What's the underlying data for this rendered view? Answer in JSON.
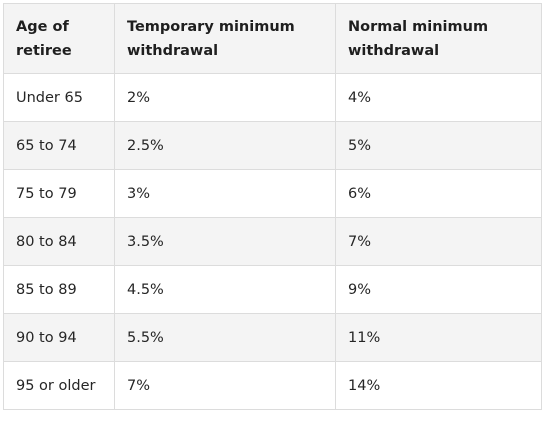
{
  "table": {
    "headers": [
      "Age of retiree",
      "Temporary minimum withdrawal",
      "Normal minimum withdrawal"
    ],
    "rows": [
      [
        "Under 65",
        "2%",
        "4%"
      ],
      [
        "65 to 74",
        "2.5%",
        "5%"
      ],
      [
        "75 to 79",
        "3%",
        "6%"
      ],
      [
        "80 to 84",
        "3.5%",
        "7%"
      ],
      [
        "85 to 89",
        "4.5%",
        "9%"
      ],
      [
        "90 to 94",
        "5.5%",
        "11%"
      ],
      [
        "95 or older",
        "7%",
        "14%"
      ]
    ]
  }
}
